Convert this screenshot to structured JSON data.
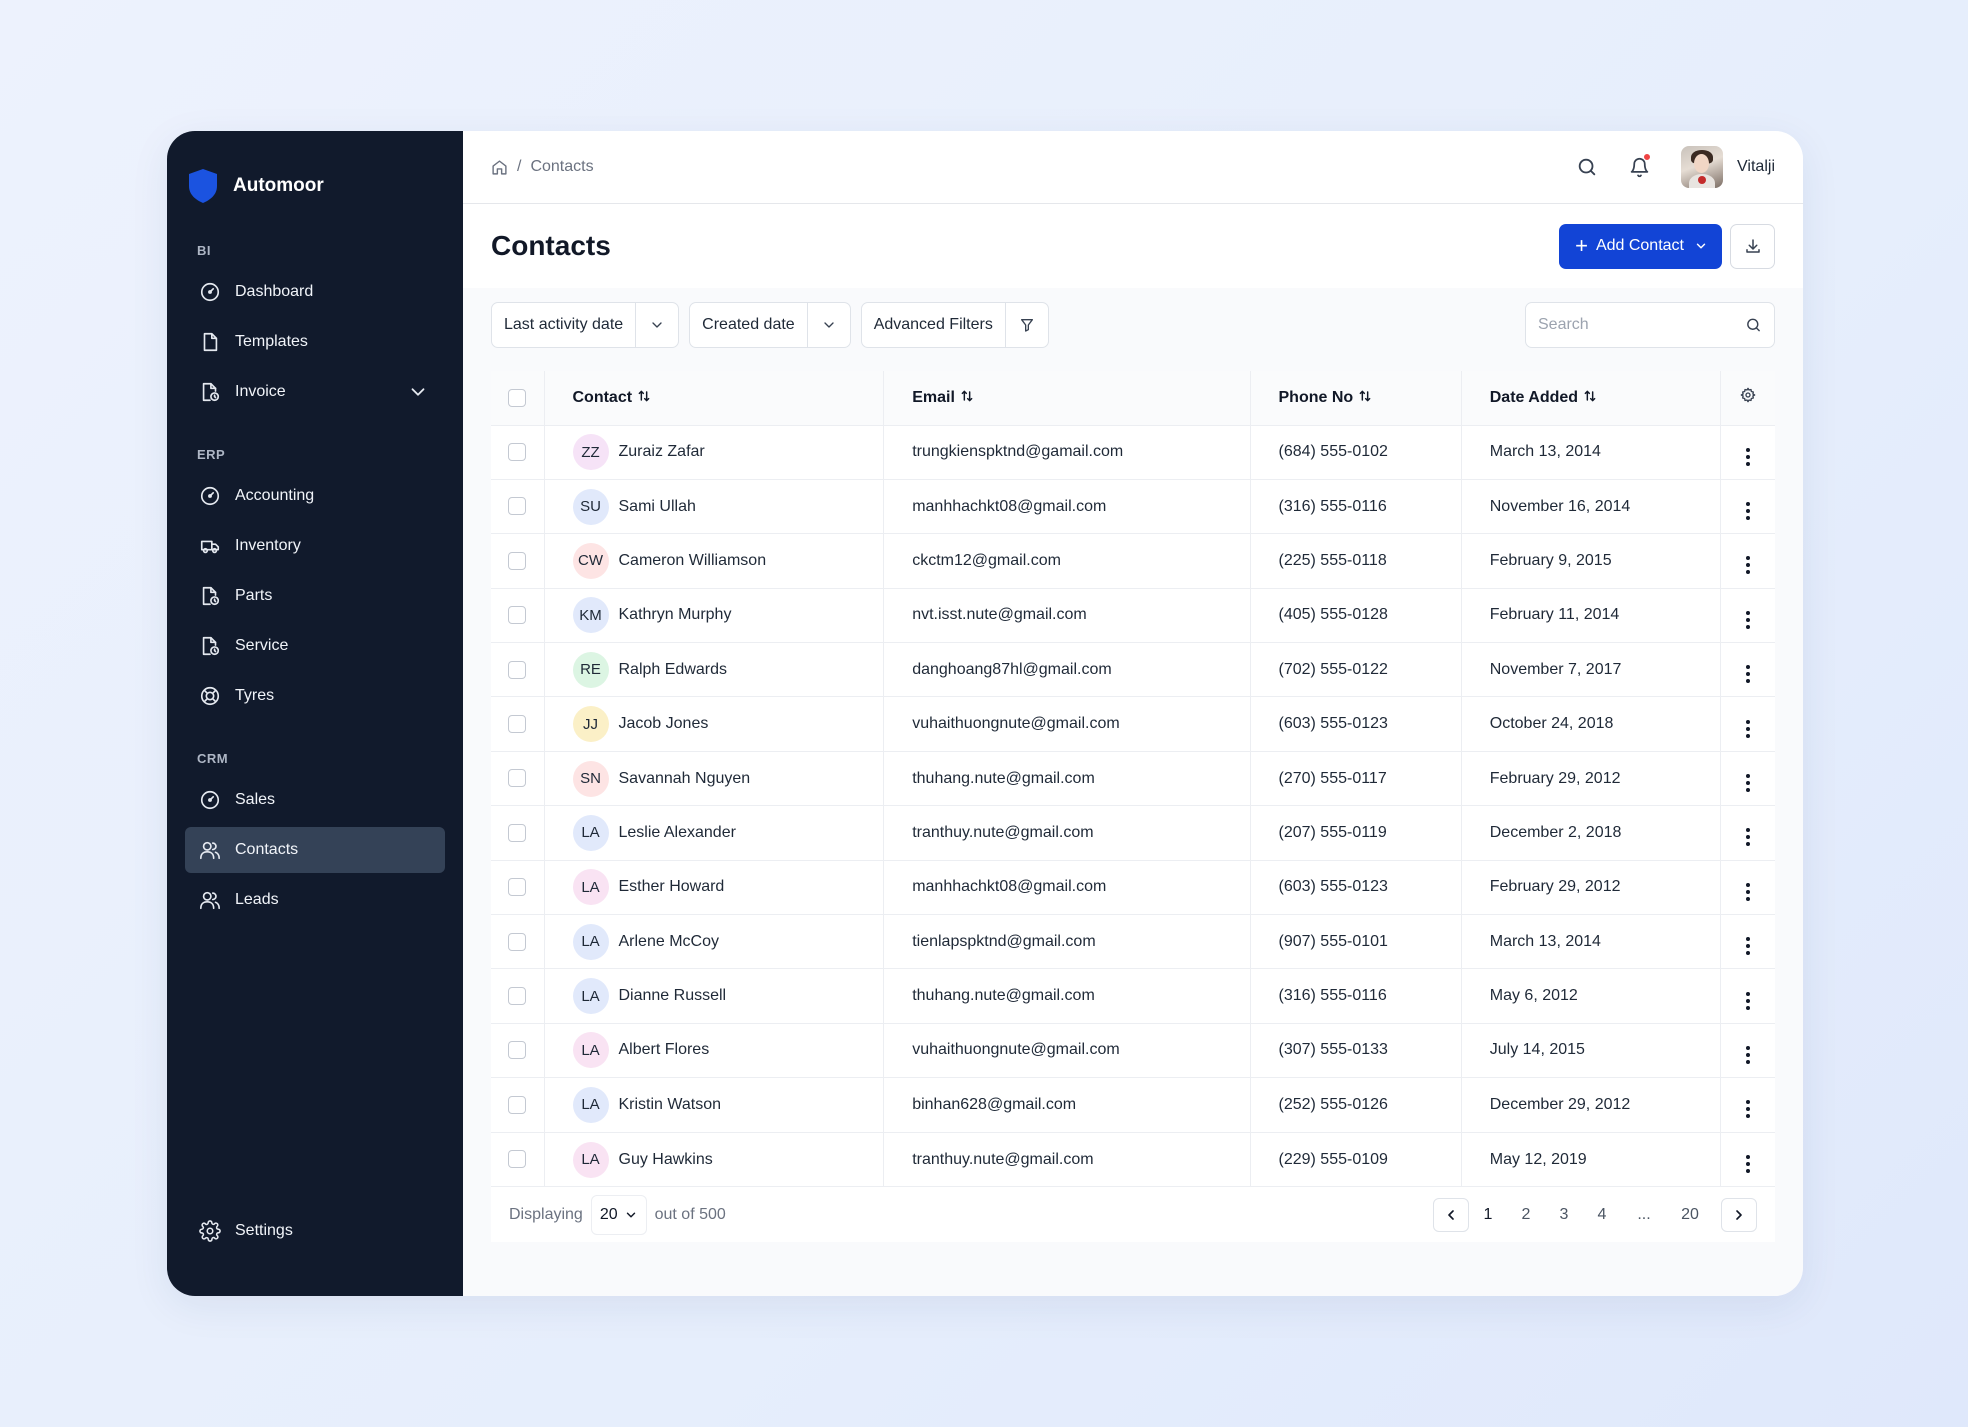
{
  "app": {
    "brand": "Automoor"
  },
  "sidebar": {
    "sections": [
      {
        "label": "BI",
        "items": [
          {
            "label": "Dashboard",
            "icon": "gauge-icon"
          },
          {
            "label": "Templates",
            "icon": "file-icon"
          },
          {
            "label": "Invoice",
            "icon": "file-clock-icon",
            "expandable": true
          }
        ]
      },
      {
        "label": "ERP",
        "items": [
          {
            "label": "Accounting",
            "icon": "gauge-icon"
          },
          {
            "label": "Inventory",
            "icon": "truck-icon"
          },
          {
            "label": "Parts",
            "icon": "file-clock-icon"
          },
          {
            "label": "Service",
            "icon": "file-clock-icon"
          },
          {
            "label": "Tyres",
            "icon": "lifebuoy-icon"
          }
        ]
      },
      {
        "label": "CRM",
        "items": [
          {
            "label": "Sales",
            "icon": "gauge-icon"
          },
          {
            "label": "Contacts",
            "icon": "users-icon",
            "active": true
          },
          {
            "label": "Leads",
            "icon": "users-icon"
          }
        ]
      }
    ],
    "settings": "Settings"
  },
  "topbar": {
    "breadcrumb": {
      "separator": "/",
      "current": "Contacts"
    },
    "user_name": "Vitalji"
  },
  "page": {
    "title": "Contacts",
    "add_button": "Add Contact"
  },
  "filters": {
    "last_activity": "Last activity date",
    "created": "Created date",
    "advanced": "Advanced Filters",
    "search_placeholder": "Search"
  },
  "table": {
    "columns": [
      "Contact",
      "Email",
      "Phone No",
      "Date Added"
    ],
    "rows": [
      {
        "initials": "ZZ",
        "avatar_color": "#f6e3f7",
        "name": "Zuraiz Zafar",
        "email": "trungkienspktnd@gamail.com",
        "phone": "(684) 555-0102",
        "date": "March 13, 2014"
      },
      {
        "initials": "SU",
        "avatar_color": "#e1e9fb",
        "name": "Sami Ullah",
        "email": "manhhachkt08@gmail.com",
        "phone": "(316) 555-0116",
        "date": "November 16, 2014"
      },
      {
        "initials": "CW",
        "avatar_color": "#fde4e4",
        "name": "Cameron Williamson",
        "email": "ckctm12@gmail.com",
        "phone": "(225) 555-0118",
        "date": "February 9, 2015"
      },
      {
        "initials": "KM",
        "avatar_color": "#e1e9fb",
        "name": "Kathryn Murphy",
        "email": "nvt.isst.nute@gmail.com",
        "phone": "(405) 555-0128",
        "date": "February 11, 2014"
      },
      {
        "initials": "RE",
        "avatar_color": "#dcf5e3",
        "name": "Ralph Edwards",
        "email": "danghoang87hl@gmail.com",
        "phone": "(702) 555-0122",
        "date": "November 7, 2017"
      },
      {
        "initials": "JJ",
        "avatar_color": "#fbf0c7",
        "name": "Jacob Jones",
        "email": "vuhaithuongnute@gmail.com",
        "phone": "(603) 555-0123",
        "date": "October 24, 2018"
      },
      {
        "initials": "SN",
        "avatar_color": "#fde4e4",
        "name": "Savannah Nguyen",
        "email": "thuhang.nute@gmail.com",
        "phone": "(270) 555-0117",
        "date": "February 29, 2012"
      },
      {
        "initials": "LA",
        "avatar_color": "#e1e9fb",
        "name": "Leslie Alexander",
        "email": "tranthuy.nute@gmail.com",
        "phone": "(207) 555-0119",
        "date": "December 2, 2018"
      },
      {
        "initials": "LA",
        "avatar_color": "#f9e3f3",
        "name": "Esther Howard",
        "email": "manhhachkt08@gmail.com",
        "phone": "(603) 555-0123",
        "date": "February 29, 2012"
      },
      {
        "initials": "LA",
        "avatar_color": "#e1e9fb",
        "name": "Arlene McCoy",
        "email": "tienlapspktnd@gmail.com",
        "phone": "(907) 555-0101",
        "date": "March 13, 2014"
      },
      {
        "initials": "LA",
        "avatar_color": "#e1e9fb",
        "name": "Dianne Russell",
        "email": "thuhang.nute@gmail.com",
        "phone": "(316) 555-0116",
        "date": "May 6, 2012"
      },
      {
        "initials": "LA",
        "avatar_color": "#f9e3f3",
        "name": "Albert Flores",
        "email": "vuhaithuongnute@gmail.com",
        "phone": "(307) 555-0133",
        "date": "July 14, 2015"
      },
      {
        "initials": "LA",
        "avatar_color": "#e1e9fb",
        "name": "Kristin Watson",
        "email": "binhan628@gmail.com",
        "phone": "(252) 555-0126",
        "date": "December 29, 2012"
      },
      {
        "initials": "LA",
        "avatar_color": "#f9e3f3",
        "name": "Guy Hawkins",
        "email": "tranthuy.nute@gmail.com",
        "phone": "(229) 555-0109",
        "date": "May 12, 2019"
      }
    ]
  },
  "pagination": {
    "displaying_label": "Displaying",
    "page_size": "20",
    "total_label": "out of 500",
    "pages": [
      "1",
      "2",
      "3",
      "4",
      "...",
      "20"
    ],
    "current": "1"
  },
  "colors": {
    "sidebar_bg": "#111a2c",
    "active_item": "#344257",
    "primary": "#1244d6",
    "notification": "#ef4444"
  }
}
